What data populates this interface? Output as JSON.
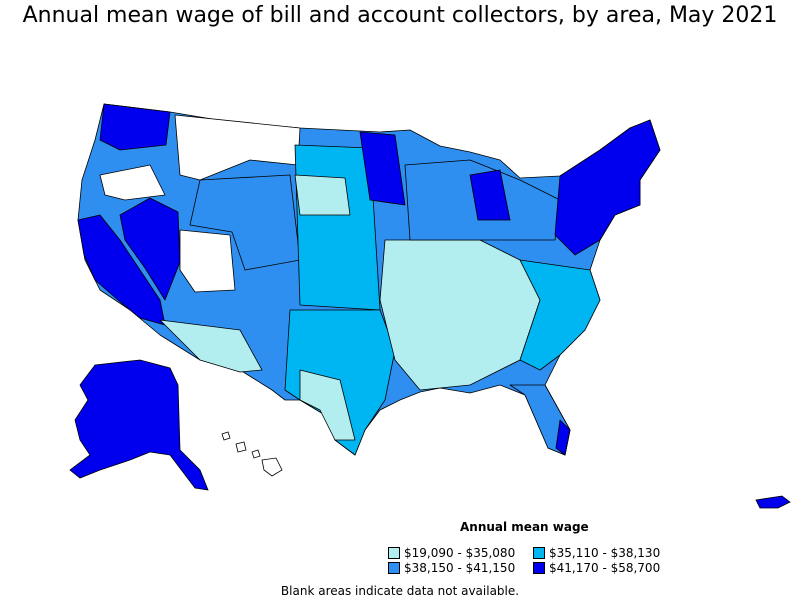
{
  "title": "Annual mean wage of bill and account collectors, by area, May 2021",
  "legend": {
    "title": "Annual mean wage",
    "items": [
      {
        "label": "$19,090 - $35,080",
        "color": "#b2eef0"
      },
      {
        "label": "$35,110 - $38,130",
        "color": "#00b6f2"
      },
      {
        "label": "$38,150 - $41,150",
        "color": "#2f8ff0"
      },
      {
        "label": "$41,170 - $58,700",
        "color": "#0000ee"
      }
    ]
  },
  "note": "Blank areas indicate data not available.",
  "colors": {
    "no_data": "#ffffff",
    "border": "#000000"
  }
}
